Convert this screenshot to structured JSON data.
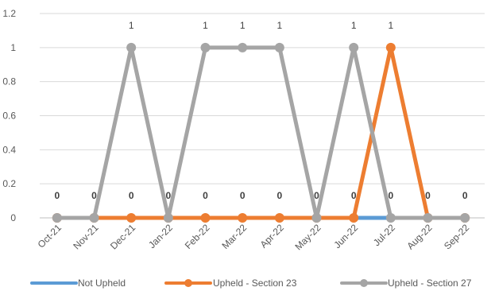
{
  "chart_data": {
    "type": "line",
    "title": "",
    "xlabel": "",
    "ylabel": "",
    "x": [
      "Oct-21",
      "Nov-21",
      "Dec-21",
      "Jan-22",
      "Feb-22",
      "Mar-22",
      "Apr-22",
      "May-22",
      "Jun-22",
      "Jul-22",
      "Aug-22",
      "Sep-22"
    ],
    "ylim": [
      0,
      1.2
    ],
    "yticks": [
      "0",
      "0.2",
      "0.4",
      "0.6",
      "0.8",
      "1",
      "1.2"
    ],
    "grid": true,
    "legend_position": "bottom",
    "series": [
      {
        "name": "Not Upheld",
        "color": "#5b9bd5",
        "values": [
          0,
          0,
          0,
          0,
          0,
          0,
          0,
          0,
          0,
          0,
          0,
          0
        ],
        "data_labels": [
          "0",
          "0",
          "0",
          "0",
          "0",
          "0",
          "0",
          "0",
          "0",
          "0",
          "0",
          "0"
        ],
        "labels_bold": true
      },
      {
        "name": "Upheld - Section 23",
        "color": "#ed7d31",
        "values": [
          0,
          0,
          0,
          0,
          0,
          0,
          0,
          0,
          0,
          1,
          0,
          0
        ],
        "data_labels": [
          "",
          "",
          "",
          "",
          "",
          "",
          "",
          "",
          "",
          "1",
          "",
          ""
        ],
        "labels_bold": false
      },
      {
        "name": "Upheld - Section 27",
        "color": "#a5a5a5",
        "values": [
          0,
          0,
          1,
          0,
          1,
          1,
          1,
          0,
          1,
          0,
          0,
          0
        ],
        "data_labels": [
          "",
          "",
          "1",
          "",
          "1",
          "1",
          "1",
          "",
          "1",
          "",
          "",
          ""
        ],
        "labels_bold": false
      }
    ]
  }
}
